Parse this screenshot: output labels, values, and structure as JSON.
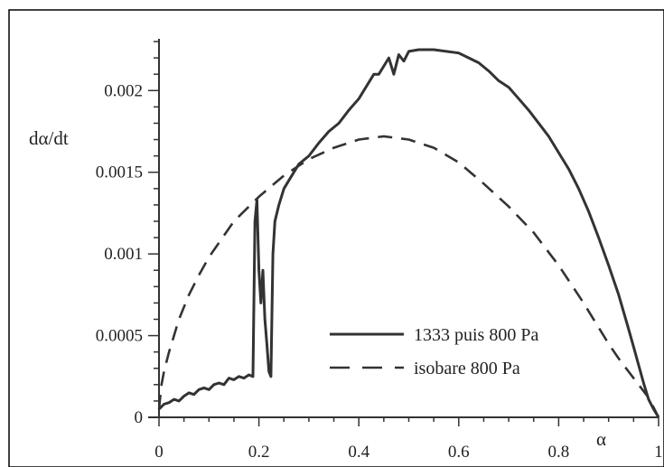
{
  "chart_data": {
    "type": "line",
    "title": "",
    "xlabel": "α",
    "ylabel": "dα/dt",
    "xlim": [
      0,
      1
    ],
    "ylim": [
      0,
      0.0023
    ],
    "x_ticks": [
      0,
      0.2,
      0.4,
      0.6,
      0.8,
      1
    ],
    "x_tick_labels": [
      "0",
      "0.2",
      "0.4",
      "0.6",
      "0.8",
      "1"
    ],
    "y_ticks": [
      0,
      0.0005,
      0.001,
      0.0015,
      0.002
    ],
    "y_tick_labels": [
      "0",
      "0.0005",
      "0.001",
      "0.0015",
      "0.002"
    ],
    "grid": false,
    "legend_position": "lower-right",
    "colors": {
      "line": "#333333",
      "frame": "#000000",
      "axis": "#333333"
    },
    "series": [
      {
        "name": "1333 puis 800 Pa",
        "style": "solid",
        "x": [
          0,
          0.01,
          0.02,
          0.03,
          0.04,
          0.05,
          0.06,
          0.07,
          0.08,
          0.09,
          0.1,
          0.11,
          0.12,
          0.13,
          0.14,
          0.15,
          0.16,
          0.17,
          0.18,
          0.188,
          0.192,
          0.196,
          0.2,
          0.204,
          0.208,
          0.212,
          0.216,
          0.22,
          0.224,
          0.228,
          0.232,
          0.236,
          0.24,
          0.25,
          0.26,
          0.27,
          0.28,
          0.3,
          0.32,
          0.34,
          0.36,
          0.38,
          0.4,
          0.41,
          0.42,
          0.43,
          0.44,
          0.45,
          0.46,
          0.47,
          0.48,
          0.49,
          0.5,
          0.52,
          0.55,
          0.6,
          0.62,
          0.64,
          0.66,
          0.68,
          0.7,
          0.72,
          0.74,
          0.76,
          0.78,
          0.8,
          0.82,
          0.84,
          0.86,
          0.88,
          0.9,
          0.92,
          0.94,
          0.95,
          0.96,
          0.97,
          0.98,
          0.99,
          1.0
        ],
        "y": [
          5e-05,
          8e-05,
          9e-05,
          0.00011,
          0.0001,
          0.00013,
          0.00015,
          0.00014,
          0.00017,
          0.00018,
          0.00017,
          0.0002,
          0.00021,
          0.0002,
          0.00024,
          0.00023,
          0.00025,
          0.00024,
          0.00026,
          0.00025,
          0.0012,
          0.00133,
          0.0009,
          0.0007,
          0.0009,
          0.0006,
          0.00045,
          0.00028,
          0.00025,
          0.001,
          0.0012,
          0.00125,
          0.0013,
          0.0014,
          0.00145,
          0.0015,
          0.00155,
          0.0016,
          0.00168,
          0.00175,
          0.0018,
          0.00188,
          0.00195,
          0.002,
          0.00205,
          0.0021,
          0.0021,
          0.00215,
          0.0022,
          0.0021,
          0.00222,
          0.00218,
          0.00224,
          0.00225,
          0.00225,
          0.00223,
          0.0022,
          0.00217,
          0.00212,
          0.00206,
          0.00202,
          0.00195,
          0.00188,
          0.0018,
          0.00172,
          0.00162,
          0.00152,
          0.0014,
          0.00126,
          0.0011,
          0.00093,
          0.00075,
          0.00054,
          0.00043,
          0.00032,
          0.00021,
          0.00011,
          5e-05,
          0.0
        ]
      },
      {
        "name": "isobare 800 Pa",
        "style": "dashed",
        "x": [
          0,
          0.005,
          0.01,
          0.02,
          0.04,
          0.06,
          0.08,
          0.1,
          0.15,
          0.2,
          0.25,
          0.3,
          0.35,
          0.4,
          0.45,
          0.5,
          0.55,
          0.6,
          0.65,
          0.7,
          0.75,
          0.8,
          0.85,
          0.88,
          0.9,
          0.92,
          0.94,
          0.96,
          0.98,
          0.99,
          1.0
        ],
        "y": [
          5e-05,
          0.0002,
          0.00028,
          0.0004,
          0.0006,
          0.00075,
          0.00087,
          0.00098,
          0.0012,
          0.00135,
          0.00148,
          0.00158,
          0.00165,
          0.0017,
          0.00172,
          0.0017,
          0.00165,
          0.00156,
          0.00143,
          0.00129,
          0.00113,
          0.00093,
          0.0007,
          0.00055,
          0.00045,
          0.00036,
          0.00028,
          0.0002,
          0.00012,
          6e-05,
          0.0
        ]
      }
    ]
  }
}
